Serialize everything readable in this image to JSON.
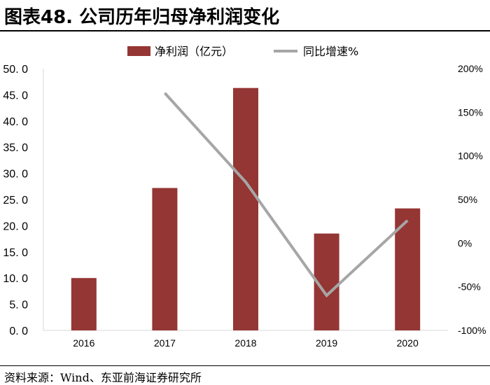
{
  "figure": {
    "title": "图表48. 公司历年归母净利润变化",
    "source": "资料来源：Wind、东亚前海证券研究所"
  },
  "chart_data": {
    "type": "bar",
    "categories": [
      "2016",
      "2017",
      "2018",
      "2019",
      "2020"
    ],
    "series": [
      {
        "name": "净利润（亿元）",
        "type": "bar",
        "axis": "left",
        "color": "#943634",
        "values": [
          10.0,
          27.2,
          46.3,
          18.5,
          23.3
        ]
      },
      {
        "name": "同比增速%",
        "type": "line",
        "axis": "right",
        "color": "#a6a6a6",
        "values": [
          null,
          1.72,
          0.7,
          -0.6,
          0.26
        ]
      }
    ],
    "y_left": {
      "ylim": [
        0,
        50
      ],
      "ticks": [
        0,
        5,
        10,
        15,
        20,
        25,
        30,
        35,
        40,
        45,
        50
      ],
      "tick_labels": [
        "0. 0",
        "5. 0",
        "10. 0",
        "15. 0",
        "20. 0",
        "25. 0",
        "30. 0",
        "35. 0",
        "40. 0",
        "45. 0",
        "50. 0"
      ]
    },
    "y_right": {
      "ylim": [
        -1.0,
        2.0
      ],
      "ticks": [
        -1.0,
        -0.5,
        0,
        0.5,
        1.0,
        1.5,
        2.0
      ],
      "tick_labels": [
        "-100%",
        "-50%",
        "0%",
        "50%",
        "100%",
        "150%",
        "200%"
      ]
    },
    "legend_position": "top-center",
    "grid": false
  }
}
